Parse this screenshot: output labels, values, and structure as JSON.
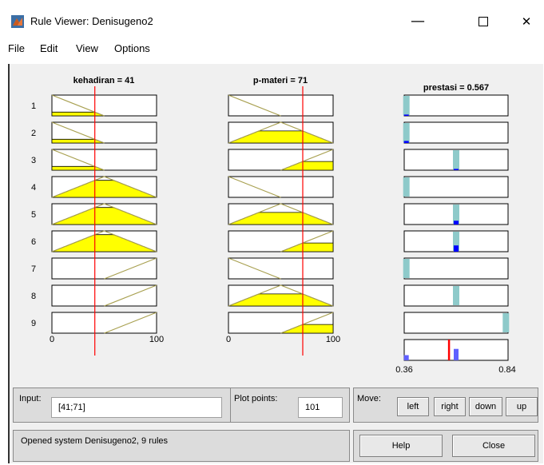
{
  "window": {
    "title": "Rule Viewer: Denisugeno2",
    "minimize_glyph": "—",
    "close_glyph": "✕"
  },
  "menu": [
    "File",
    "Edit",
    "View",
    "Options"
  ],
  "inputs_vars": [
    {
      "label": "kehadiran = 41",
      "value": 41,
      "range": [
        0,
        100
      ],
      "tick_min": "0",
      "tick_max": "100"
    },
    {
      "label": "p-materi = 71",
      "value": 71,
      "range": [
        0,
        100
      ],
      "tick_min": "0",
      "tick_max": "100"
    }
  ],
  "output_var": {
    "label": "prestasi = 0.567",
    "value": 0.567,
    "range": [
      0.36,
      0.84
    ],
    "tick_min": "0.36",
    "tick_max": "0.84"
  },
  "rule_numbers": [
    "1",
    "2",
    "3",
    "4",
    "5",
    "6",
    "7",
    "8",
    "9"
  ],
  "rules": [
    {
      "in1": "low",
      "in2": "low",
      "out": 0.37,
      "firing": 0.06
    },
    {
      "in1": "low",
      "in2": "med",
      "out": 0.37,
      "firing": 0.1
    },
    {
      "in1": "low",
      "in2": "high",
      "out": 0.6,
      "firing": 0.06
    },
    {
      "in1": "med",
      "in2": "low",
      "out": 0.37,
      "firing": 0.0
    },
    {
      "in1": "med",
      "in2": "med",
      "out": 0.6,
      "firing": 0.18
    },
    {
      "in1": "med",
      "in2": "high",
      "out": 0.6,
      "firing": 0.3
    },
    {
      "in1": "high",
      "in2": "low",
      "out": 0.37,
      "firing": 0.0
    },
    {
      "in1": "high",
      "in2": "med",
      "out": 0.6,
      "firing": 0.0
    },
    {
      "in1": "high",
      "in2": "high",
      "out": 0.83,
      "firing": 0.0
    }
  ],
  "aggregate": [
    {
      "x": 0.37,
      "h": 0.25
    },
    {
      "x": 0.6,
      "h": 0.55
    }
  ],
  "bottom": {
    "input_label": "Input:",
    "input_value": "[41;71]",
    "plot_points_label": "Plot points:",
    "plot_points_value": "101",
    "move_label": "Move:",
    "btn_left": "left",
    "btn_right": "right",
    "btn_down": "down",
    "btn_up": "up",
    "status": "Opened system Denisugeno2, 9 rules",
    "help": "Help",
    "close": "Close"
  },
  "colors": {
    "mf_line": "#a8a050",
    "fill": "#ffff00",
    "index_line": "#ff0000",
    "out_mf": "#8ecaca",
    "out_fire": "#0000ff",
    "agg_fill": "#6060ff"
  }
}
